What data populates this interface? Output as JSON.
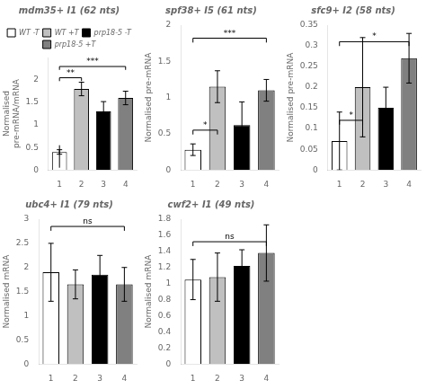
{
  "chart_data": [
    {
      "type": "bar",
      "title": "mdm35+ I1 (62 nts)",
      "ylabel": "Normalised\npre-mRNA/mRNA",
      "categories": [
        "1",
        "2",
        "3",
        "4"
      ],
      "series": [
        {
          "name": "WT -T",
          "color": "white",
          "values": [
            0.4,
            null,
            null,
            null
          ],
          "errors": [
            0.05,
            null,
            null,
            null
          ]
        },
        {
          "name": "WT +T",
          "color": "#c0c0c0",
          "values": [
            null,
            1.8,
            null,
            null
          ],
          "errors": [
            null,
            0.15,
            null,
            null
          ]
        },
        {
          "name": "prp18-5 -T",
          "color": "black",
          "values": [
            null,
            null,
            1.3,
            null
          ],
          "errors": [
            null,
            null,
            0.22,
            null
          ]
        },
        {
          "name": "prp18-5 +T",
          "color": "#808080",
          "values": [
            null,
            null,
            null,
            1.6
          ],
          "errors": [
            null,
            null,
            null,
            0.15
          ]
        }
      ],
      "ylim": [
        0,
        2.5
      ],
      "yticks": [
        0,
        0.5,
        1,
        1.5,
        2
      ],
      "grid": false,
      "legend": "top",
      "annotations": [
        {
          "x1": "1",
          "x2": "1",
          "y": 0.55
        },
        {
          "x1": "1",
          "x2": "2",
          "y": 2.05,
          "label": "**"
        },
        {
          "x1": "1",
          "x2": "4",
          "y": 2.3,
          "label": "***"
        }
      ]
    },
    {
      "type": "bar",
      "title": "spf38+ I5 (61 nts)",
      "ylabel": "Normalised pre-mRNA",
      "categories": [
        "1",
        "2",
        "3",
        "4"
      ],
      "series": [
        {
          "name": "WT -T",
          "color": "white",
          "values": [
            0.28,
            null,
            null,
            null
          ],
          "errors": [
            0.08,
            null,
            null,
            null
          ]
        },
        {
          "name": "WT +T",
          "color": "#c0c0c0",
          "values": [
            null,
            1.15,
            null,
            null
          ],
          "errors": [
            null,
            0.22,
            null,
            null
          ]
        },
        {
          "name": "prp18-5 -T",
          "color": "black",
          "values": [
            null,
            null,
            0.62,
            null
          ],
          "errors": [
            null,
            null,
            0.32,
            null
          ]
        },
        {
          "name": "prp18-5 +T",
          "color": "#808080",
          "values": [
            null,
            null,
            null,
            1.1
          ],
          "errors": [
            null,
            null,
            null,
            0.15
          ]
        }
      ],
      "ylim": [
        0,
        2.0
      ],
      "yticks": [
        0,
        0.5,
        1,
        1.5,
        2
      ],
      "grid": false,
      "annotations": [
        {
          "x1": "1",
          "x2": "2",
          "y": 0.55,
          "label": "*"
        },
        {
          "x1": "1",
          "x2": "4",
          "y": 1.82,
          "label": "***"
        }
      ]
    },
    {
      "type": "bar",
      "title": "sfc9+ I2 (58 nts)",
      "ylabel": "Normalised pre-mRNA",
      "categories": [
        "1",
        "2",
        "3",
        "4"
      ],
      "series": [
        {
          "name": "WT -T",
          "color": "white",
          "values": [
            0.07,
            null,
            null,
            null
          ],
          "errors": [
            0.07,
            null,
            null,
            null
          ]
        },
        {
          "name": "WT +T",
          "color": "#c0c0c0",
          "values": [
            null,
            0.2,
            null,
            null
          ],
          "errors": [
            null,
            0.12,
            null,
            null
          ]
        },
        {
          "name": "prp18-5 -T",
          "color": "black",
          "values": [
            null,
            null,
            0.15,
            null
          ],
          "errors": [
            null,
            null,
            0.05,
            null
          ]
        },
        {
          "name": "prp18-5 +T",
          "color": "#808080",
          "values": [
            null,
            null,
            null,
            0.27
          ],
          "errors": [
            null,
            null,
            null,
            0.06
          ]
        }
      ],
      "ylim": [
        0,
        0.35
      ],
      "yticks": [
        0,
        0.05,
        0.1,
        0.15,
        0.2,
        0.25,
        0.3,
        0.35
      ],
      "grid": false,
      "annotations": [
        {
          "x1": "1",
          "x2": "2",
          "y": 0.12,
          "label": "*"
        },
        {
          "x1": "1",
          "x2": "4",
          "y": 0.31,
          "label": "*"
        }
      ]
    },
    {
      "type": "bar",
      "title": "ubc4+ I1 (79 nts)",
      "ylabel": "Normalised mRNA",
      "categories": [
        "1",
        "2",
        "3",
        "4"
      ],
      "series": [
        {
          "name": "WT -T",
          "color": "white",
          "values": [
            1.9,
            null,
            null,
            null
          ],
          "errors": [
            0.6,
            null,
            null,
            null
          ]
        },
        {
          "name": "WT +T",
          "color": "#c0c0c0",
          "values": [
            null,
            1.65,
            null,
            null
          ],
          "errors": [
            null,
            0.3,
            null,
            null
          ]
        },
        {
          "name": "prp18-5 -T",
          "color": "black",
          "values": [
            null,
            null,
            1.85,
            null
          ],
          "errors": [
            null,
            null,
            0.4,
            null
          ]
        },
        {
          "name": "prp18-5 +T",
          "color": "#808080",
          "values": [
            null,
            null,
            null,
            1.65
          ],
          "errors": [
            null,
            null,
            null,
            0.35
          ]
        }
      ],
      "ylim": [
        0,
        3.0
      ],
      "yticks": [
        0,
        0.5,
        1,
        1.5,
        2,
        2.5,
        3
      ],
      "grid": false,
      "annotations": [
        {
          "x1": "1",
          "x2": "4",
          "y": 2.85,
          "label": "ns"
        }
      ]
    },
    {
      "type": "bar",
      "title": "cwf2+ I1 (49 nts)",
      "ylabel": "Normalised mRNA",
      "categories": [
        "1",
        "2",
        "3",
        "4"
      ],
      "series": [
        {
          "name": "WT -T",
          "color": "white",
          "values": [
            1.05,
            null,
            null,
            null
          ],
          "errors": [
            0.25,
            null,
            null,
            null
          ]
        },
        {
          "name": "WT +T",
          "color": "#c0c0c0",
          "values": [
            null,
            1.08,
            null,
            null
          ],
          "errors": [
            null,
            0.3,
            null,
            null
          ]
        },
        {
          "name": "prp18-5 -T",
          "color": "black",
          "values": [
            null,
            null,
            1.22,
            null
          ],
          "errors": [
            null,
            null,
            0.2,
            null
          ]
        },
        {
          "name": "prp18-5 +T",
          "color": "#808080",
          "values": [
            null,
            null,
            null,
            1.38
          ],
          "errors": [
            null,
            null,
            null,
            0.35
          ]
        }
      ],
      "ylim": [
        0,
        1.8
      ],
      "yticks": [
        0,
        0.2,
        0.4,
        0.6,
        0.8,
        1,
        1.2,
        1.4,
        1.6,
        1.8
      ],
      "grid": false,
      "annotations": [
        {
          "x1": "1",
          "x2": "4",
          "y": 1.52,
          "label": "ns"
        }
      ]
    }
  ]
}
